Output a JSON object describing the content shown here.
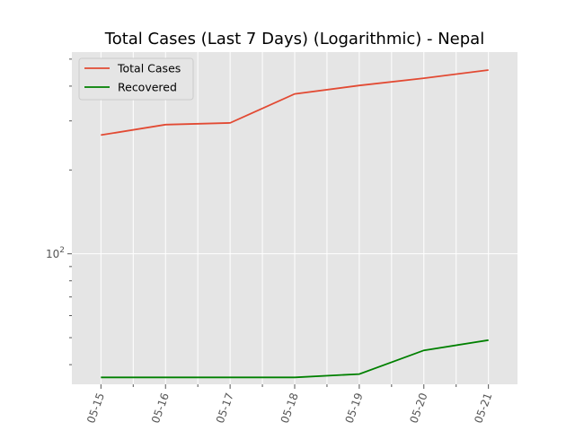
{
  "chart_data": {
    "type": "line",
    "title": "Total Cases (Last 7 Days) (Logarithmic) - Nepal",
    "xlabel": "",
    "ylabel": "",
    "yscale": "log",
    "grid": true,
    "legend_position": "top-left",
    "x_tick_labels": [
      "05-15",
      "05-16",
      "05-17",
      "05-18",
      "05-19",
      "05-20",
      "05-21"
    ],
    "y_tick_label": {
      "base": "10",
      "exponent": "2",
      "value": 100
    },
    "ylim": [
      34,
      530
    ],
    "series": [
      {
        "name": "Total Cases",
        "color": "#e24a33",
        "points": [
          {
            "x": "2020-05-15",
            "y": 267
          },
          {
            "x": "2020-05-16",
            "y": 291
          },
          {
            "x": "2020-05-17",
            "y": 295
          },
          {
            "x": "2020-05-18",
            "y": 375
          },
          {
            "x": "2020-05-19",
            "y": 402
          },
          {
            "x": "2020-05-20",
            "y": 427
          },
          {
            "x": "2020-05-21",
            "y": 457
          }
        ]
      },
      {
        "name": "Recovered",
        "color": "#008000",
        "points": [
          {
            "x": "2020-05-15",
            "y": 36
          },
          {
            "x": "2020-05-16",
            "y": 36
          },
          {
            "x": "2020-05-17",
            "y": 36
          },
          {
            "x": "2020-05-18",
            "y": 36
          },
          {
            "x": "2020-05-19",
            "y": 37
          },
          {
            "x": "2020-05-20",
            "y": 45
          },
          {
            "x": "2020-05-21",
            "y": 49
          }
        ]
      }
    ]
  }
}
